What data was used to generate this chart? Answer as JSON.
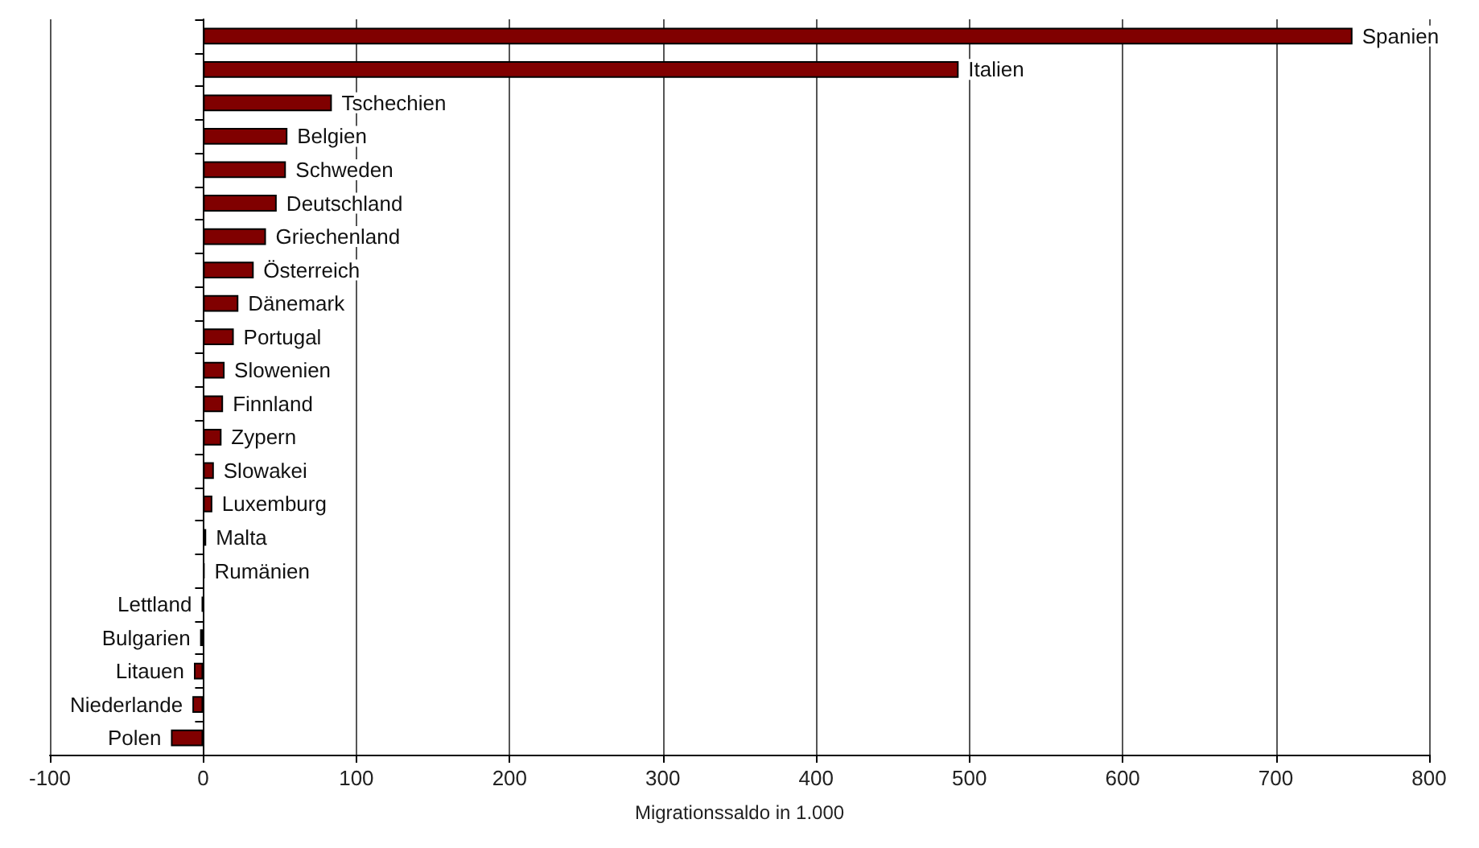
{
  "chart_data": {
    "type": "bar",
    "orientation": "horizontal",
    "xlabel": "Migrationssaldo in 1.000",
    "categories": [
      "Spanien",
      "Italien",
      "Tschechien",
      "Belgien",
      "Schweden",
      "Deutschland",
      "Griechenland",
      "Österreich",
      "Dänemark",
      "Portugal",
      "Slowenien",
      "Finnland",
      "Zypern",
      "Slowakei",
      "Luxemburg",
      "Malta",
      "Rumänien",
      "Lettland",
      "Bulgarien",
      "Litauen",
      "Niederlande",
      "Polen"
    ],
    "values": [
      750,
      493,
      84,
      55,
      54,
      48,
      41,
      33,
      23,
      20,
      14,
      13,
      12,
      7,
      6,
      2,
      1,
      -1,
      -2,
      -6,
      -7,
      -21
    ],
    "color": "#800000",
    "xlim": [
      -100,
      800
    ],
    "xticks": [
      -100,
      0,
      100,
      200,
      300,
      400,
      500,
      600,
      700,
      800
    ],
    "grid": "x",
    "tick_labels": "x"
  }
}
